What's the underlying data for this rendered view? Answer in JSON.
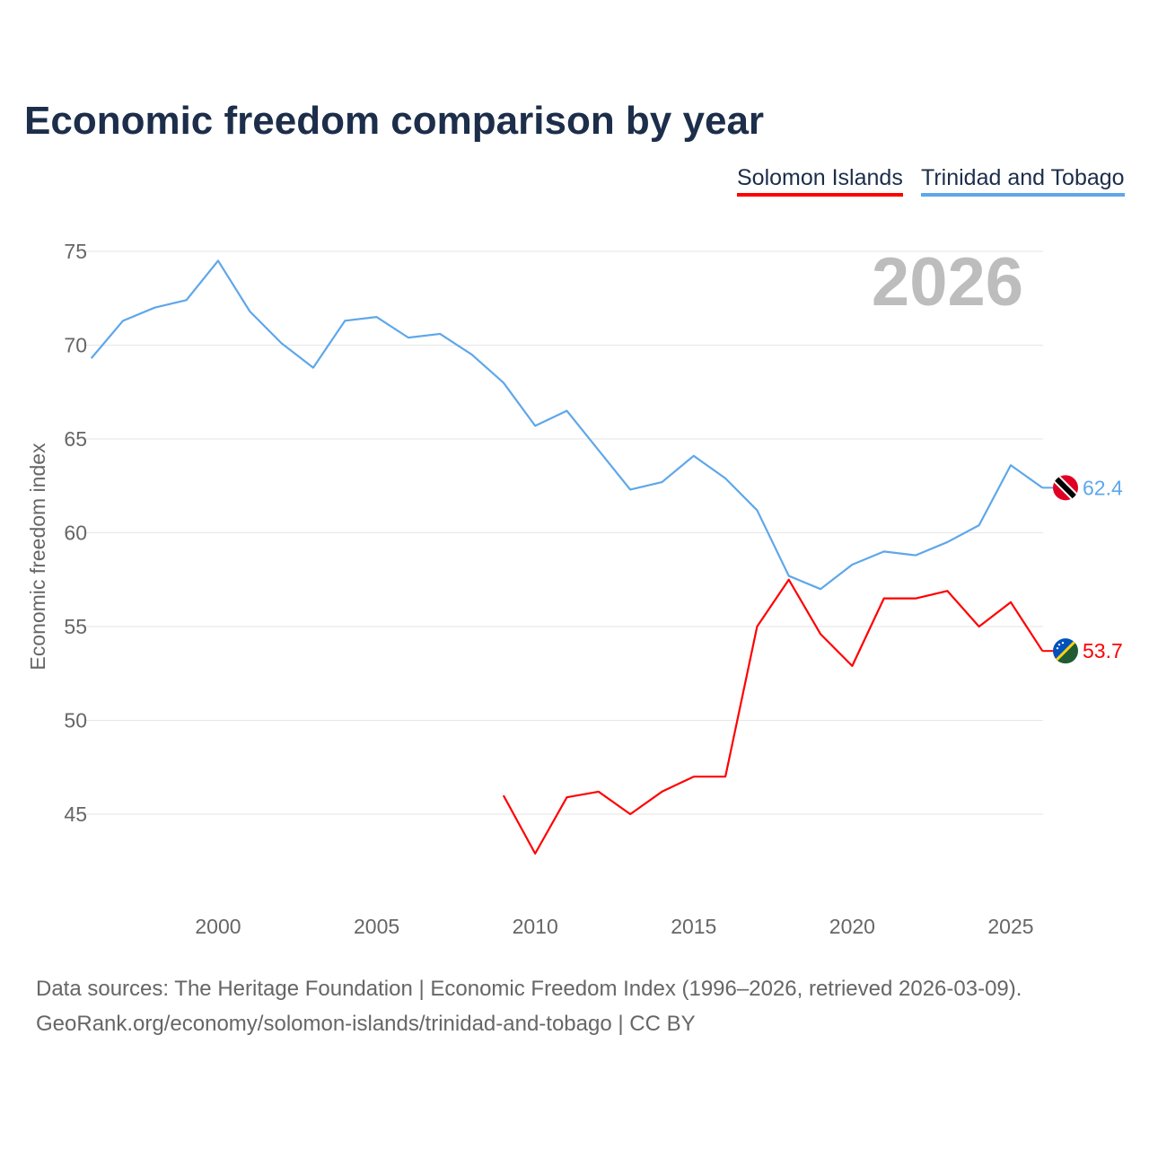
{
  "chart_data": {
    "type": "line",
    "title": "Economic freedom comparison by year",
    "ylabel": "Economic freedom index",
    "xlabel": "",
    "year_label": "2026",
    "ylim": [
      40.7,
      77
    ],
    "xlim": [
      1996,
      2026
    ],
    "y_ticks": [
      45,
      50,
      55,
      60,
      65,
      70,
      75
    ],
    "x_ticks": [
      2000,
      2005,
      2010,
      2015,
      2020,
      2025
    ],
    "grid": true,
    "legend_position": "top-right",
    "series": [
      {
        "name": "Solomon Islands",
        "color": "#ff0000",
        "end_label": "53.7",
        "x": [
          2009,
          2010,
          2011,
          2012,
          2013,
          2014,
          2015,
          2016,
          2017,
          2018,
          2019,
          2020,
          2021,
          2022,
          2023,
          2024,
          2025,
          2026
        ],
        "values": [
          46.0,
          42.9,
          45.9,
          46.2,
          45.0,
          46.2,
          47.0,
          47.0,
          55.0,
          57.5,
          54.6,
          52.9,
          56.5,
          56.5,
          56.9,
          55.0,
          56.3,
          53.7
        ]
      },
      {
        "name": "Trinidad and Tobago",
        "color": "#5ea7ea",
        "end_label": "62.4",
        "x": [
          1996,
          1997,
          1998,
          1999,
          2000,
          2001,
          2002,
          2003,
          2004,
          2005,
          2006,
          2007,
          2008,
          2009,
          2010,
          2011,
          2012,
          2013,
          2014,
          2015,
          2016,
          2017,
          2018,
          2019,
          2020,
          2021,
          2022,
          2023,
          2024,
          2025,
          2026
        ],
        "values": [
          69.3,
          71.3,
          72.0,
          72.4,
          74.5,
          71.8,
          70.1,
          68.8,
          71.3,
          71.5,
          70.4,
          70.6,
          69.5,
          68.0,
          65.7,
          66.5,
          64.4,
          62.3,
          62.7,
          64.1,
          62.9,
          61.2,
          57.7,
          57.0,
          58.3,
          59.0,
          58.8,
          59.5,
          60.4,
          63.6,
          62.4
        ]
      }
    ]
  },
  "footer": {
    "line1": "Data sources: The Heritage Foundation | Economic Freedom Index (1996–2026, retrieved 2026-03-09).",
    "line2": "GeoRank.org/economy/solomon-islands/trinidad-and-tobago | CC BY"
  }
}
